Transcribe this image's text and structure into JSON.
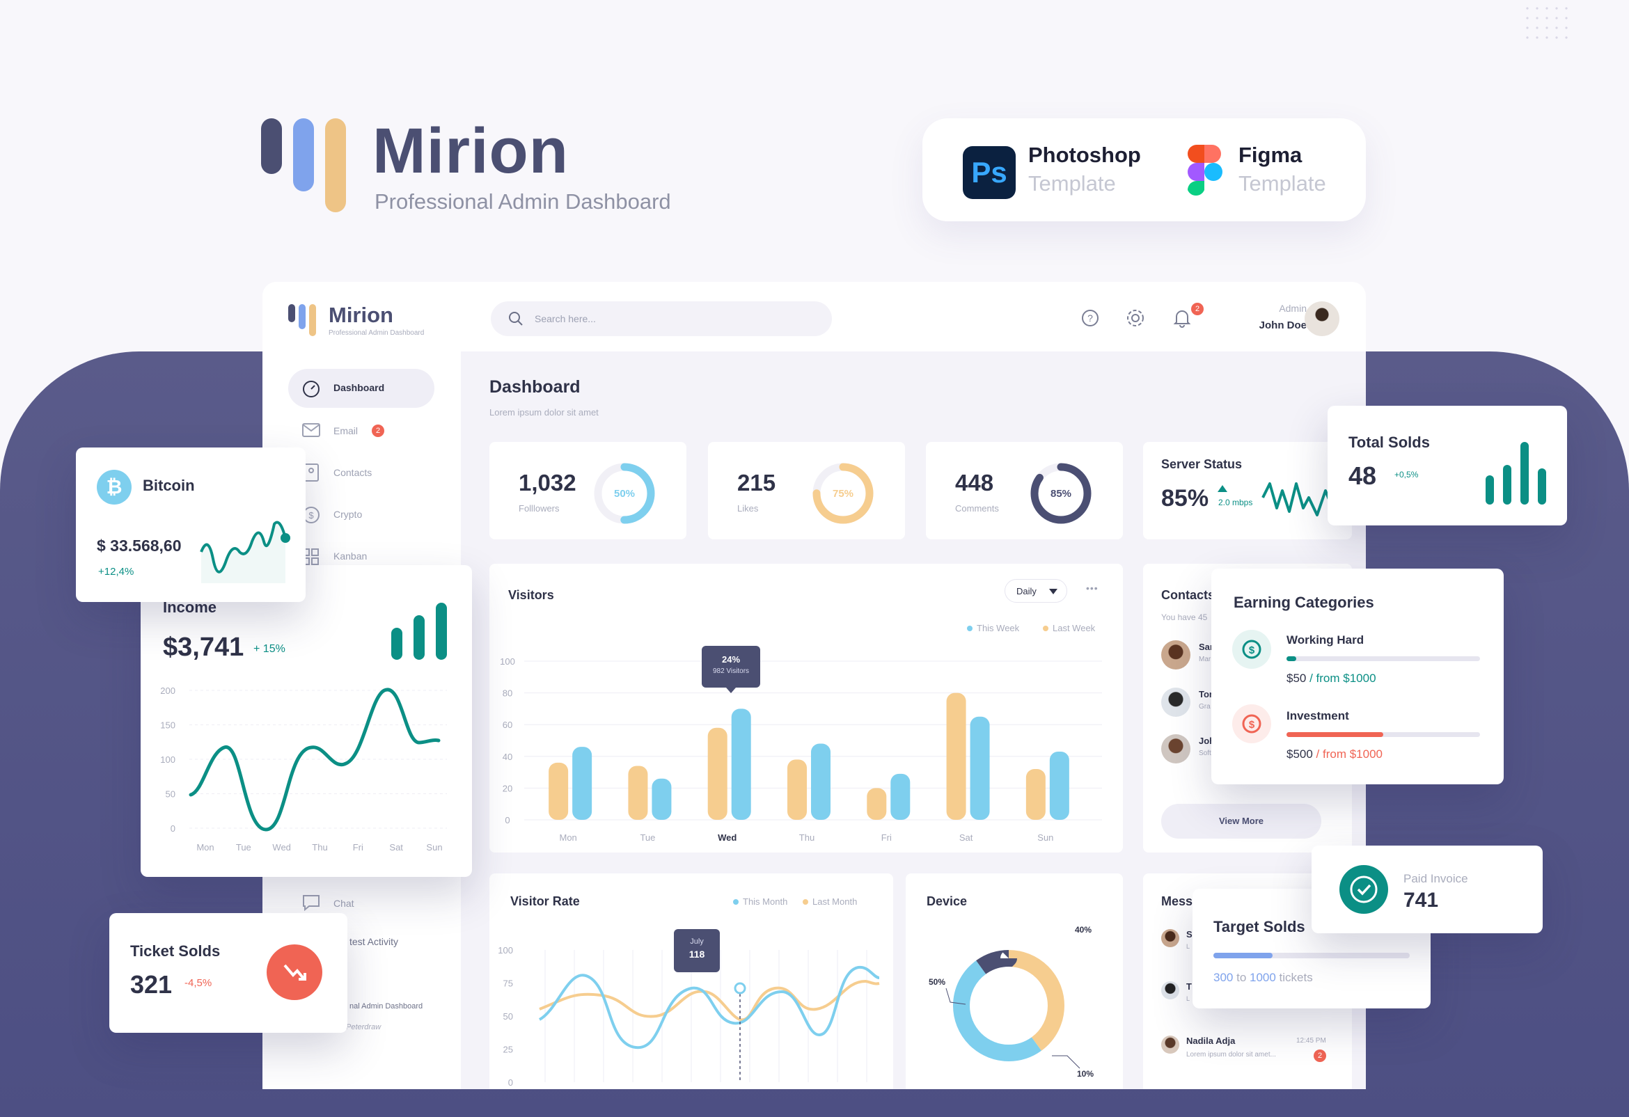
{
  "hero": {
    "brand": "Mirion",
    "tagline": "Professional Admin Dashboard"
  },
  "templates": {
    "ps": {
      "badge": "Ps",
      "title": "Photoshop",
      "subtitle": "Template"
    },
    "figma": {
      "title": "Figma",
      "subtitle": "Template"
    }
  },
  "app": {
    "brand": "Mirion",
    "tagline": "Professional Admin Dashboard",
    "search_placeholder": "Search here...",
    "notif_count": "2",
    "user_role": "Admin",
    "user_name": "John Doe",
    "sidebar": [
      {
        "label": "Dashboard",
        "icon": "gauge-icon",
        "active": true
      },
      {
        "label": "Email",
        "icon": "mail-icon",
        "badge": "2"
      },
      {
        "label": "Contacts",
        "icon": "contacts-icon"
      },
      {
        "label": "Crypto",
        "icon": "crypto-icon"
      },
      {
        "label": "Kanban",
        "icon": "kanban-icon"
      }
    ],
    "sidebar_chat": "Chat",
    "latest_activity": "test Activity",
    "activity_line1": "nal Admin Dashboard",
    "activity_line2": "Peterdraw",
    "page_title": "Dashboard",
    "page_subtitle": "Lorem ipsum  dolor sit amet",
    "stats": [
      {
        "value": "1,032",
        "label": "Folllowers",
        "pct": "50%",
        "frac": 0.5,
        "color": "#7ecfee"
      },
      {
        "value": "215",
        "label": "Likes",
        "pct": "75%",
        "frac": 0.75,
        "color": "#f6cd8f"
      },
      {
        "value": "448",
        "label": "Comments",
        "pct": "85%",
        "frac": 0.85,
        "color": "#4b4f73"
      }
    ],
    "server": {
      "title": "Server Status",
      "value": "85%",
      "speed": "2.0 mbps"
    },
    "contacts": {
      "title": "Contacts",
      "subtitle": "You have 45",
      "rows": [
        {
          "name": "Sar",
          "sub": "Mar"
        },
        {
          "name": "Tor",
          "sub": "Gra"
        },
        {
          "name": "Joh",
          "sub": "Soft"
        }
      ],
      "button": "View More"
    },
    "messages": {
      "title": "Mess",
      "rows": [
        {
          "name": "S",
          "sub": "L"
        },
        {
          "name": "T",
          "sub": "L"
        },
        {
          "name": "Nadila Adja",
          "sub": "Lorem ipsum dolor sit amet...",
          "time": "12:45 PM",
          "badge": "2"
        }
      ]
    },
    "visitors": {
      "title": "Visitors",
      "filter": "Daily",
      "more": "•••",
      "legend": [
        "This Week",
        "Last Week"
      ],
      "tooltip_pct": "24%",
      "tooltip_sub": "982 Visitors"
    },
    "visitor_rate": {
      "title": "Visitor Rate",
      "legend": [
        "This Month",
        "Last Month"
      ],
      "tooltip_month": "July",
      "tooltip_value": "118"
    },
    "device": {
      "title": "Device",
      "labels": [
        "40%",
        "50%",
        "10%"
      ]
    }
  },
  "floating": {
    "bitcoin": {
      "title": "Bitcoin",
      "value": "$ 33.568,60",
      "change": "+12,4%"
    },
    "income": {
      "title": "Income",
      "value": "$3,741",
      "change": "+ 15%"
    },
    "ticket": {
      "title": "Ticket Solds",
      "value": "321",
      "change": "-4,5%"
    },
    "total_solds": {
      "title": "Total Solds",
      "value": "48",
      "change": "+0,5%"
    },
    "earning": {
      "title": "Earning Categories",
      "items": [
        {
          "name": "Working Hard",
          "amount": "$50",
          "from": " / from $1000",
          "progress": 0.05,
          "color": "#0b8f85"
        },
        {
          "name": "Investment",
          "amount": "$500",
          "from": "  / from $1000",
          "progress": 0.5,
          "color": "#f06454"
        }
      ]
    },
    "paid": {
      "title": "Paid Invoice",
      "value": "741"
    },
    "target": {
      "title": "Target Solds",
      "from": "300",
      "mid": " to ",
      "to": "1000",
      "suffix": " tickets",
      "progress": 0.3
    }
  },
  "chart_data": [
    {
      "type": "bar",
      "title": "Visitors",
      "categories": [
        "Mon",
        "Tue",
        "Wed",
        "Thu",
        "Fri",
        "Sat",
        "Sun"
      ],
      "series": [
        {
          "name": "Last Week",
          "values": [
            36,
            34,
            58,
            38,
            20,
            80,
            32
          ]
        },
        {
          "name": "This Week",
          "values": [
            46,
            26,
            70,
            48,
            29,
            65,
            43
          ]
        }
      ],
      "ylim": [
        0,
        100
      ],
      "yticks": [
        0,
        20,
        40,
        60,
        80,
        100
      ]
    },
    {
      "type": "line",
      "title": "Income",
      "categories": [
        "Mon",
        "Tue",
        "Wed",
        "Thu",
        "Fri",
        "Sat",
        "Sun"
      ],
      "yticks": [
        0,
        50,
        100,
        150,
        200
      ],
      "ylim": [
        0,
        200
      ]
    },
    {
      "type": "line",
      "title": "Visitor Rate",
      "series": [
        {
          "name": "This Month"
        },
        {
          "name": "Last Month"
        }
      ],
      "yticks": [
        0,
        25,
        50,
        75,
        100
      ],
      "ylim": [
        0,
        100
      ]
    },
    {
      "type": "pie",
      "title": "Device",
      "values": [
        40,
        50,
        10
      ]
    }
  ]
}
